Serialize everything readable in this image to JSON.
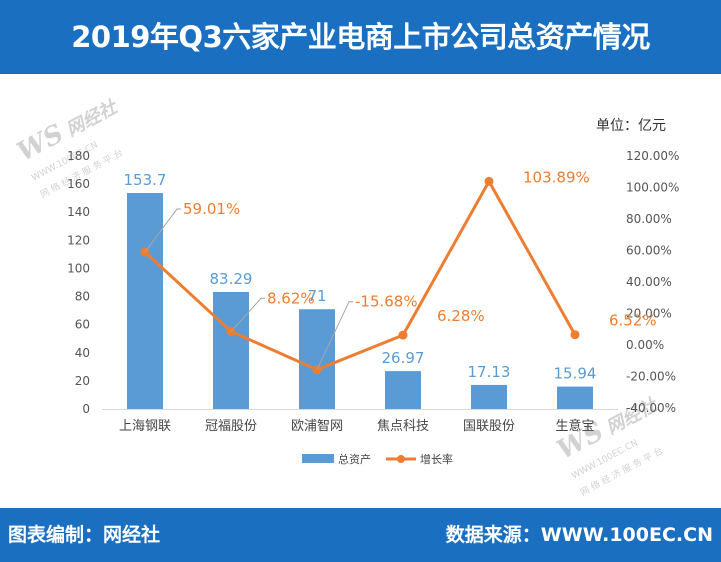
{
  "header": {
    "title": "2019年Q3六家产业电商上市公司总资产情况"
  },
  "footer": {
    "left": "图表编制：网经社",
    "right": "数据来源：WWW.100EC.CN"
  },
  "watermark": {
    "logo": "WS",
    "name": "网经社",
    "url": "WWW.100EC.CN",
    "tagline": "网 络 经 济 服 务 平 台"
  },
  "unit_label": "单位：亿元",
  "chart_data": {
    "type": "bar",
    "title": "2019年Q3六家产业电商上市公司总资产情况",
    "categories": [
      "上海钢联",
      "冠福股份",
      "欧浦智网",
      "焦点科技",
      "国联股份",
      "生意宝"
    ],
    "series": [
      {
        "name": "总资产",
        "type": "bar",
        "axis": "left",
        "color": "#5b9bd5",
        "values": [
          153.7,
          83.29,
          71,
          26.97,
          17.13,
          15.94
        ],
        "labels": [
          "153.7",
          "83.29",
          "71",
          "26.97",
          "17.13",
          "15.94"
        ]
      },
      {
        "name": "增长率",
        "type": "line",
        "axis": "right",
        "color": "#ed7d31",
        "values": [
          59.01,
          8.62,
          -15.68,
          6.28,
          103.89,
          6.52
        ],
        "labels": [
          "59.01%",
          "8.62%",
          "-15.68%",
          "6.28%",
          "103.89%",
          "6.52%"
        ]
      }
    ],
    "y_left": {
      "min": 0,
      "max": 180,
      "step": 20,
      "ticks": [
        "0",
        "20",
        "40",
        "60",
        "80",
        "100",
        "120",
        "140",
        "160",
        "180"
      ]
    },
    "y_right": {
      "min": -40,
      "max": 120,
      "step": 20,
      "ticks": [
        "-40.00%",
        "-20.00%",
        "0.00%",
        "20.00%",
        "40.00%",
        "60.00%",
        "80.00%",
        "100.00%",
        "120.00%"
      ]
    },
    "grid": false,
    "legend_position": "bottom"
  }
}
